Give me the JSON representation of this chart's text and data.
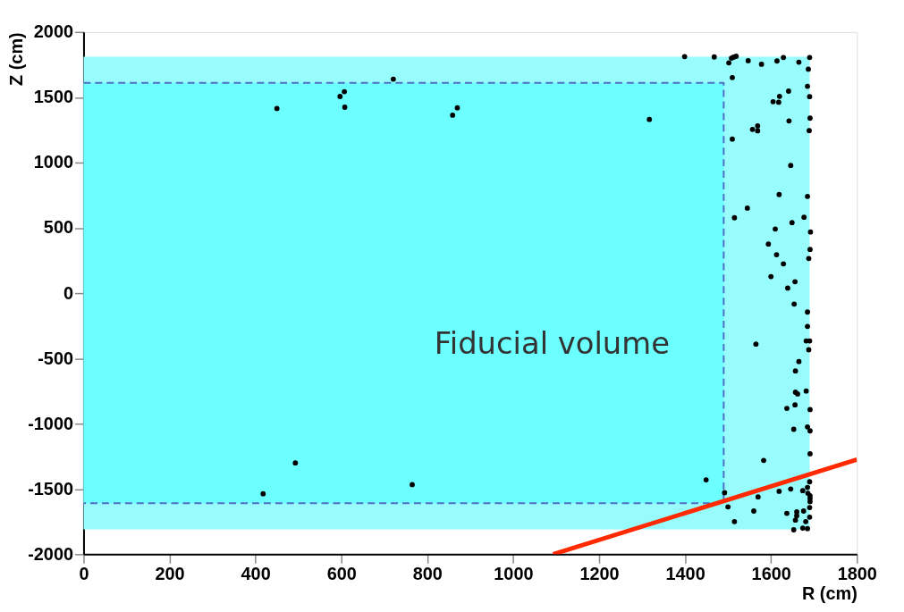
{
  "chart_data": {
    "type": "scatter",
    "xlabel": "R (cm)",
    "ylabel": "Z (cm)",
    "xlim": [
      0,
      1800
    ],
    "ylim": [
      -2000,
      2000
    ],
    "xticks": [
      0,
      200,
      400,
      600,
      800,
      1000,
      1200,
      1400,
      1600,
      1800
    ],
    "yticks": [
      -2000,
      -1500,
      -1000,
      -500,
      0,
      500,
      1000,
      1500,
      2000
    ],
    "grid": false,
    "series": [
      {
        "type": "area",
        "color": "#99fcfc",
        "x": [
          0,
          1690
        ],
        "values": [
          1810,
          1810
        ]
      },
      {
        "type": "area",
        "color": "#99fcfc",
        "x": [
          0,
          1690
        ],
        "values": [
          -1810,
          -1810
        ]
      },
      {
        "type": "area",
        "color": "#6cffff",
        "x": [
          0,
          1490
        ],
        "values": [
          1610,
          1610
        ]
      },
      {
        "type": "area",
        "color": "#6cffff",
        "x": [
          0,
          1490
        ],
        "values": [
          -1610,
          -1610
        ]
      },
      {
        "type": "line",
        "color": "#4f6fc4",
        "line_style": "dashed",
        "x": [
          0,
          1490,
          1490,
          0
        ],
        "values": [
          1610,
          1610,
          -1610,
          -1610
        ]
      },
      {
        "color": "#000000",
        "marker": "circle",
        "x": [
          450,
          597,
          607,
          608,
          721,
          859,
          870,
          1317,
          418,
          493,
          765,
          1399,
          1468,
          1502,
          1508,
          1513,
          1519,
          1547,
          1578,
          1614,
          1629,
          1665,
          1690,
          1687,
          1510,
          1685,
          1641,
          1690,
          1620,
          1605,
          1618,
          1642,
          1691,
          1689,
          1557,
          1569,
          1569,
          1510,
          1646,
          1619,
          1685,
          1545,
          1515,
          1677,
          1649,
          1610,
          1692,
          1594,
          1691,
          1613,
          1688,
          1629,
          1600,
          1656,
          1639,
          1654,
          1685,
          1685,
          1682,
          1690,
          1565,
          1688,
          1665,
          1657,
          1682,
          1657,
          1662,
          1637,
          1656,
          1691,
          1653,
          1685,
          1691,
          1691,
          1583,
          1449,
          1492,
          1500,
          1515,
          1560,
          1570,
          1619,
          1646,
          1674,
          1685,
          1690,
          1691,
          1691,
          1690,
          1691,
          1686,
          1637,
          1660,
          1676,
          1660,
          1657,
          1681,
          1690,
          1653,
          1674,
          1685
        ],
        "values": [
          1414,
          1506,
          1543,
          1424,
          1639,
          1363,
          1419,
          1330,
          -1537,
          -1301,
          -1467,
          1812,
          1809,
          1764,
          1800,
          1807,
          1814,
          1780,
          1753,
          1778,
          1805,
          1769,
          1805,
          1715,
          1651,
          1584,
          1547,
          1505,
          1507,
          1466,
          1462,
          1319,
          1340,
          1245,
          1254,
          1243,
          1281,
          1180,
          978,
          755,
          741,
          651,
          577,
          581,
          540,
          491,
          468,
          376,
          335,
          294,
          265,
          224,
          127,
          87,
          39,
          -84,
          -145,
          -255,
          -366,
          -366,
          -391,
          -434,
          -524,
          -596,
          -750,
          -759,
          -772,
          -883,
          -856,
          -892,
          -1043,
          -1025,
          -1055,
          -1231,
          -1281,
          -1430,
          -1529,
          -1637,
          -1750,
          -1669,
          -1561,
          -1518,
          -1500,
          -1513,
          -1488,
          -1445,
          -1574,
          -1597,
          -1642,
          -1552,
          -1533,
          -1687,
          -1676,
          -1669,
          -1705,
          -1739,
          -1750,
          -1716,
          -1813,
          -1800,
          -1804
        ]
      },
      {
        "type": "line",
        "color": "#ff2a00",
        "line_style": "solid",
        "x": [
          1093,
          1800
        ],
        "values": [
          -2000,
          -1275
        ]
      }
    ],
    "annotations": [
      "Fiducial volume"
    ]
  }
}
